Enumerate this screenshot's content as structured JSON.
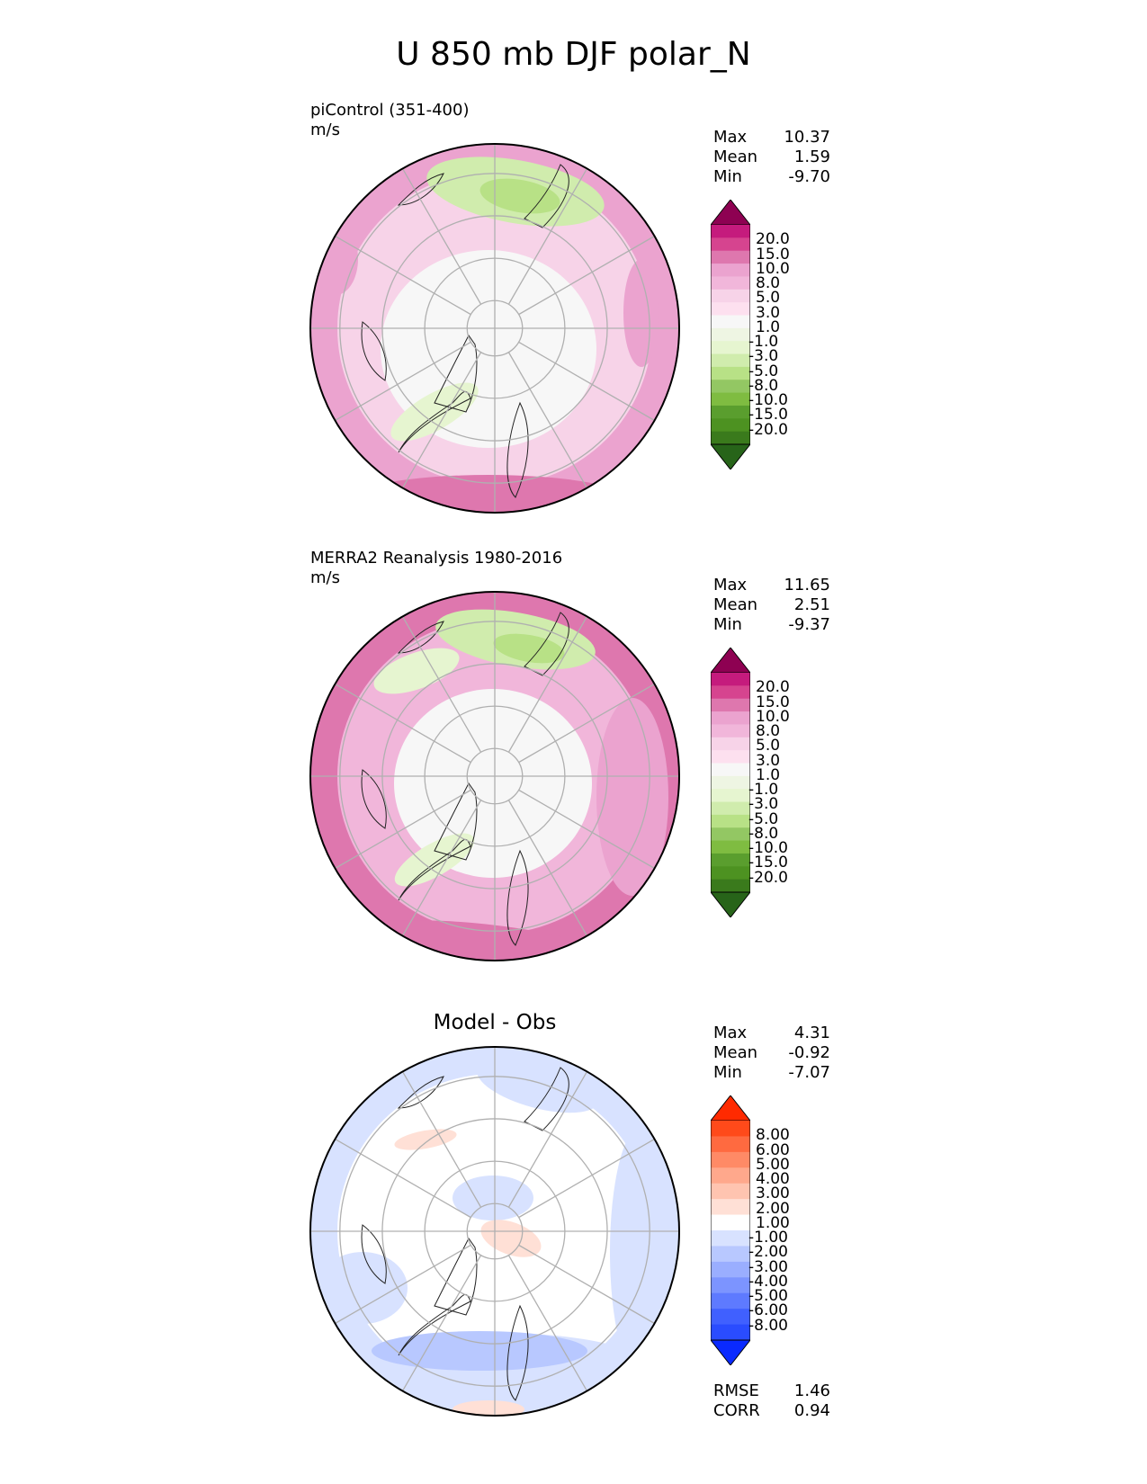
{
  "title": "U 850 mb DJF polar_N",
  "panels": [
    {
      "id": "model",
      "label_line1": "piControl (351-400)",
      "label_line2": "m/s",
      "stats": [
        {
          "name": "Max",
          "value": "10.37"
        },
        {
          "name": "Mean",
          "value": "1.59"
        },
        {
          "name": "Min",
          "value": "-9.70"
        }
      ],
      "colorbar_labels": [
        "20.0",
        "15.0",
        "10.0",
        "8.0",
        "5.0",
        "3.0",
        "1.0",
        "-1.0",
        "-3.0",
        "-5.0",
        "-8.0",
        "-10.0",
        "-15.0",
        "-20.0"
      ],
      "colorbar_colors": [
        "#8e0152",
        "#c51b7d",
        "#d6448f",
        "#de77ae",
        "#eba3cf",
        "#f1b6da",
        "#f7d3e8",
        "#fde0ef",
        "#f7f7f7",
        "#eef5e3",
        "#e6f5d0",
        "#d0ecad",
        "#b8e186",
        "#93c763",
        "#7fbc41",
        "#5a9e2e",
        "#4d9221",
        "#3a7a1c",
        "#276419"
      ]
    },
    {
      "id": "obs",
      "label_line1": "MERRA2 Reanalysis 1980-2016",
      "label_line2": "m/s",
      "stats": [
        {
          "name": "Max",
          "value": "11.65"
        },
        {
          "name": "Mean",
          "value": "2.51"
        },
        {
          "name": "Min",
          "value": "-9.37"
        }
      ],
      "colorbar_labels": [
        "20.0",
        "15.0",
        "10.0",
        "8.0",
        "5.0",
        "3.0",
        "1.0",
        "-1.0",
        "-3.0",
        "-5.0",
        "-8.0",
        "-10.0",
        "-15.0",
        "-20.0"
      ],
      "colorbar_colors": [
        "#8e0152",
        "#c51b7d",
        "#d6448f",
        "#de77ae",
        "#eba3cf",
        "#f1b6da",
        "#f7d3e8",
        "#fde0ef",
        "#f7f7f7",
        "#eef5e3",
        "#e6f5d0",
        "#d0ecad",
        "#b8e186",
        "#93c763",
        "#7fbc41",
        "#5a9e2e",
        "#4d9221",
        "#3a7a1c",
        "#276419"
      ]
    },
    {
      "id": "diff",
      "title": "Model - Obs",
      "stats": [
        {
          "name": "Max",
          "value": "4.31"
        },
        {
          "name": "Mean",
          "value": "-0.92"
        },
        {
          "name": "Min",
          "value": "-7.07"
        }
      ],
      "metrics": [
        {
          "name": "RMSE",
          "value": "1.46"
        },
        {
          "name": "CORR",
          "value": "0.94"
        }
      ],
      "colorbar_labels": [
        "8.00",
        "6.00",
        "5.00",
        "4.00",
        "3.00",
        "2.00",
        "1.00",
        "-1.00",
        "-2.00",
        "-3.00",
        "-4.00",
        "-5.00",
        "-6.00",
        "-8.00"
      ],
      "colorbar_colors": [
        "#ff2a00",
        "#ff4a1a",
        "#ff6a40",
        "#ff8a66",
        "#ffa88c",
        "#ffc4b0",
        "#ffe0d6",
        "#ffffff",
        "#d8e2ff",
        "#b8c8ff",
        "#9aaeff",
        "#7c94ff",
        "#5e7aff",
        "#4060ff",
        "#2a4cff",
        "#0a2aff"
      ]
    }
  ],
  "fields": {
    "model": {
      "base": "#f7d3e8",
      "rim": "#eba3cf"
    },
    "obs": {
      "base": "#f1b6da",
      "rim": "#de77ae"
    },
    "diff": {
      "base": "#ffffff",
      "rim": "#d8e2ff"
    }
  }
}
